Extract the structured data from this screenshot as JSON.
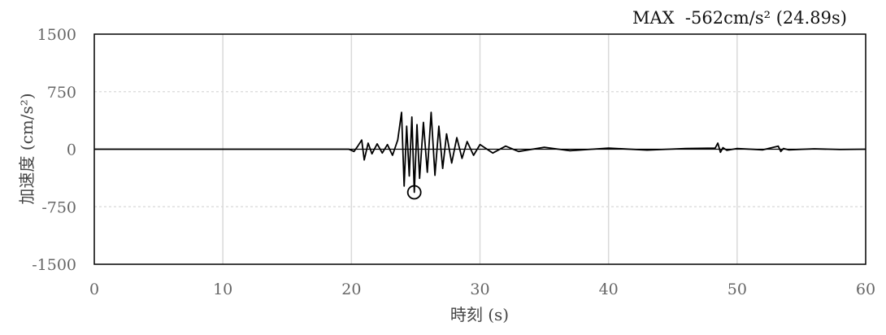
{
  "chart_data": {
    "type": "line",
    "annotation": "MAX  -562cm/s² (24.89s)",
    "peak": {
      "x": 24.89,
      "y": -562
    },
    "xlabel": "時刻 (s)",
    "ylabel": "加速度 (cm/s²)",
    "xlim": [
      0,
      60
    ],
    "ylim": [
      -1500,
      1500
    ],
    "xticks": [
      0,
      10,
      20,
      30,
      40,
      50,
      60
    ],
    "xtick_labels": [
      "0",
      "10",
      "20",
      "30",
      "40",
      "50",
      "60"
    ],
    "yticks": [
      1500,
      750,
      0,
      -750,
      -1500
    ],
    "ytick_labels": [
      "1500",
      "750",
      "0",
      "-750",
      "-1500"
    ],
    "grid": true,
    "series": [
      {
        "x": [
          0,
          19.8,
          20.2,
          20.5,
          20.8,
          21.0,
          21.3,
          21.6,
          22.0,
          22.4,
          22.8,
          23.2,
          23.6,
          23.9,
          24.1,
          24.3,
          24.5,
          24.7,
          24.89,
          25.1,
          25.3,
          25.6,
          25.9,
          26.2,
          26.5,
          26.8,
          27.1,
          27.4,
          27.8,
          28.2,
          28.6,
          29.0,
          29.5,
          30.0,
          31.0,
          32.0,
          33.0,
          35.0,
          37.0,
          40.0,
          43.0,
          46.0,
          48.3,
          48.5,
          48.7,
          48.9,
          49.2,
          50.0,
          52.0,
          53.2,
          53.4,
          53.6,
          54.0,
          56.0,
          58.0,
          60.0
        ],
        "y": [
          0,
          0,
          -30,
          40,
          120,
          -140,
          80,
          -60,
          70,
          -50,
          60,
          -80,
          120,
          480,
          -480,
          300,
          -350,
          420,
          -562,
          320,
          -380,
          350,
          -300,
          480,
          -340,
          300,
          -250,
          200,
          -180,
          150,
          -120,
          100,
          -80,
          60,
          -50,
          40,
          -30,
          25,
          -20,
          15,
          -12,
          10,
          15,
          80,
          -40,
          20,
          -15,
          10,
          -8,
          40,
          -30,
          10,
          -8,
          5,
          -4,
          0
        ]
      }
    ]
  }
}
